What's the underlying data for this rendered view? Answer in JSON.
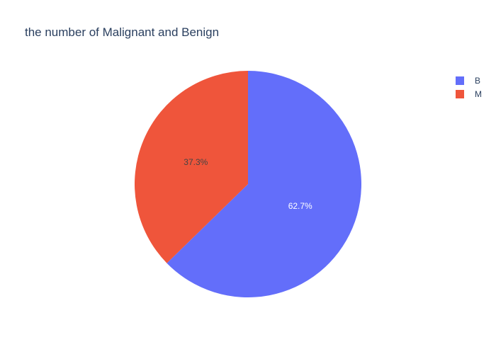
{
  "chart_data": {
    "type": "pie",
    "title": "the number of Malignant and Benign",
    "categories": [
      "B",
      "M"
    ],
    "values": [
      62.7,
      37.3
    ],
    "labels": [
      "62.7%",
      "37.3%"
    ],
    "colors": [
      "#636efa",
      "#ef553b"
    ],
    "label_colors": [
      "#ffffff",
      "#444444"
    ],
    "legend_placement": "top-right",
    "direction": "clockwise",
    "start": "top"
  }
}
